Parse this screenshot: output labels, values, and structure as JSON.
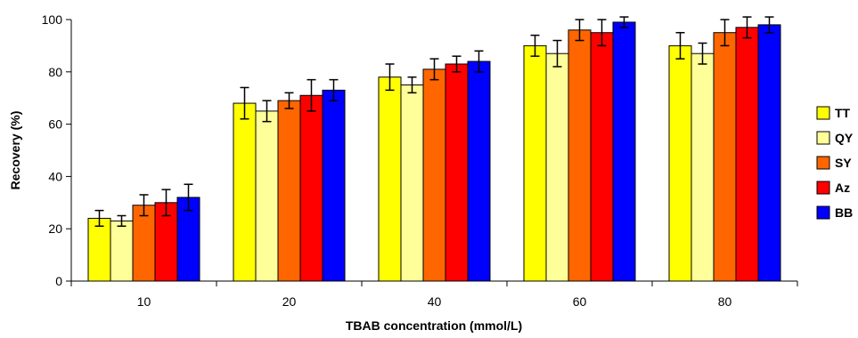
{
  "chart_data": {
    "type": "bar",
    "categories": [
      "10",
      "20",
      "40",
      "60",
      "80"
    ],
    "series": [
      {
        "name": "TT",
        "color": "#FFFF00",
        "values": [
          24,
          68,
          78,
          90,
          90
        ],
        "errors": [
          3,
          6,
          5,
          4,
          5
        ]
      },
      {
        "name": "QY",
        "color": "#FFFF99",
        "values": [
          23,
          65,
          75,
          87,
          87
        ],
        "errors": [
          2,
          4,
          3,
          5,
          4
        ]
      },
      {
        "name": "SY",
        "color": "#FF6600",
        "values": [
          29,
          69,
          81,
          96,
          95
        ],
        "errors": [
          4,
          3,
          4,
          4,
          5
        ]
      },
      {
        "name": "Az",
        "color": "#FF0000",
        "values": [
          30,
          71,
          83,
          95,
          97
        ],
        "errors": [
          5,
          6,
          3,
          5,
          4
        ]
      },
      {
        "name": "BB",
        "color": "#0000FF",
        "values": [
          32,
          73,
          84,
          99,
          98
        ],
        "errors": [
          5,
          4,
          4,
          2,
          3
        ]
      }
    ],
    "xlabel": "TBAB concentration (mmol/L)",
    "ylabel": "Recovery (%)",
    "ylim": [
      0,
      100
    ],
    "yticks": [
      "0",
      "20",
      "40",
      "60",
      "80",
      "100"
    ],
    "grid": false,
    "legend_position": "right"
  }
}
